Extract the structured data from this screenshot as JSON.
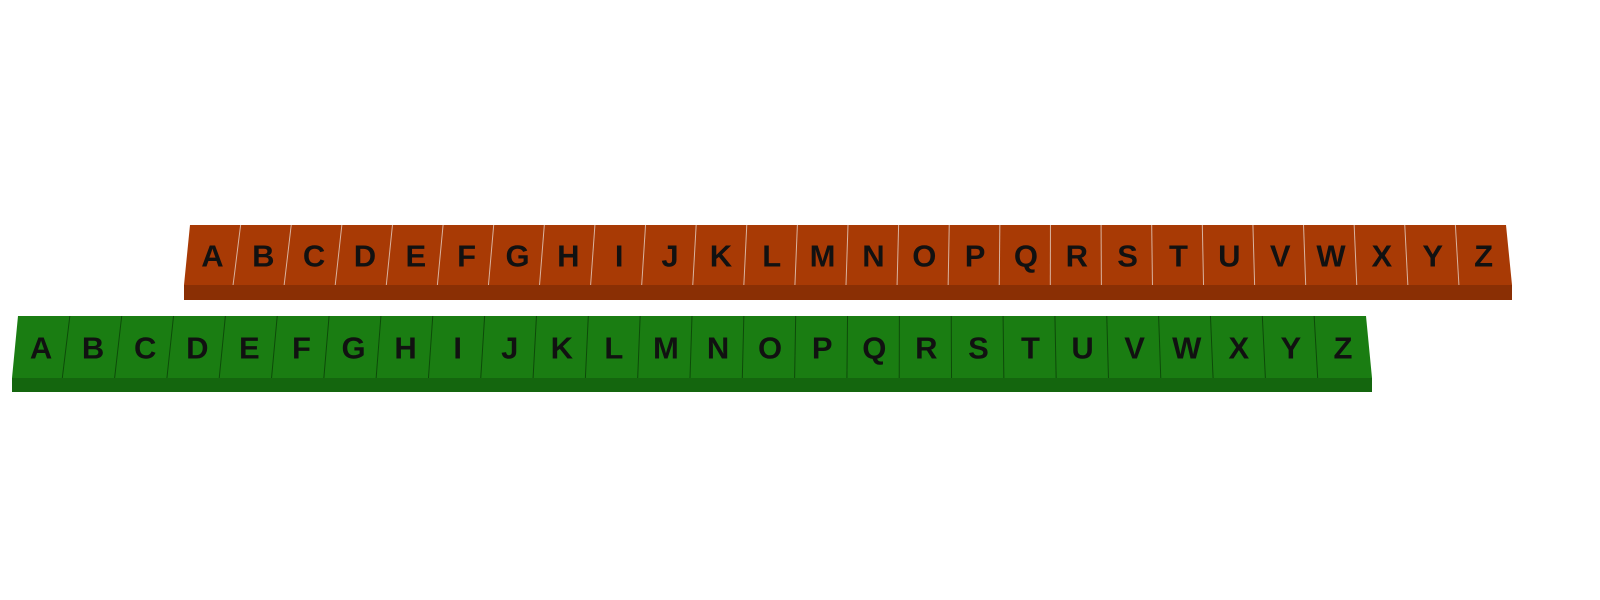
{
  "strips": [
    {
      "name": "orange-strip",
      "top_color": "#a83a05",
      "front_color": "#8a2f04",
      "divider_color": "#d9b3a0",
      "letters": [
        "A",
        "B",
        "C",
        "D",
        "E",
        "F",
        "G",
        "H",
        "I",
        "J",
        "K",
        "L",
        "M",
        "N",
        "O",
        "P",
        "Q",
        "R",
        "S",
        "T",
        "U",
        "V",
        "W",
        "X",
        "Y",
        "Z"
      ]
    },
    {
      "name": "green-strip",
      "top_color": "#1a7d12",
      "front_color": "#14660e",
      "divider_color": "#0d4a09",
      "letters": [
        "A",
        "B",
        "C",
        "D",
        "E",
        "F",
        "G",
        "H",
        "I",
        "J",
        "K",
        "L",
        "M",
        "N",
        "O",
        "P",
        "Q",
        "R",
        "S",
        "T",
        "U",
        "V",
        "W",
        "X",
        "Y",
        "Z"
      ]
    }
  ]
}
